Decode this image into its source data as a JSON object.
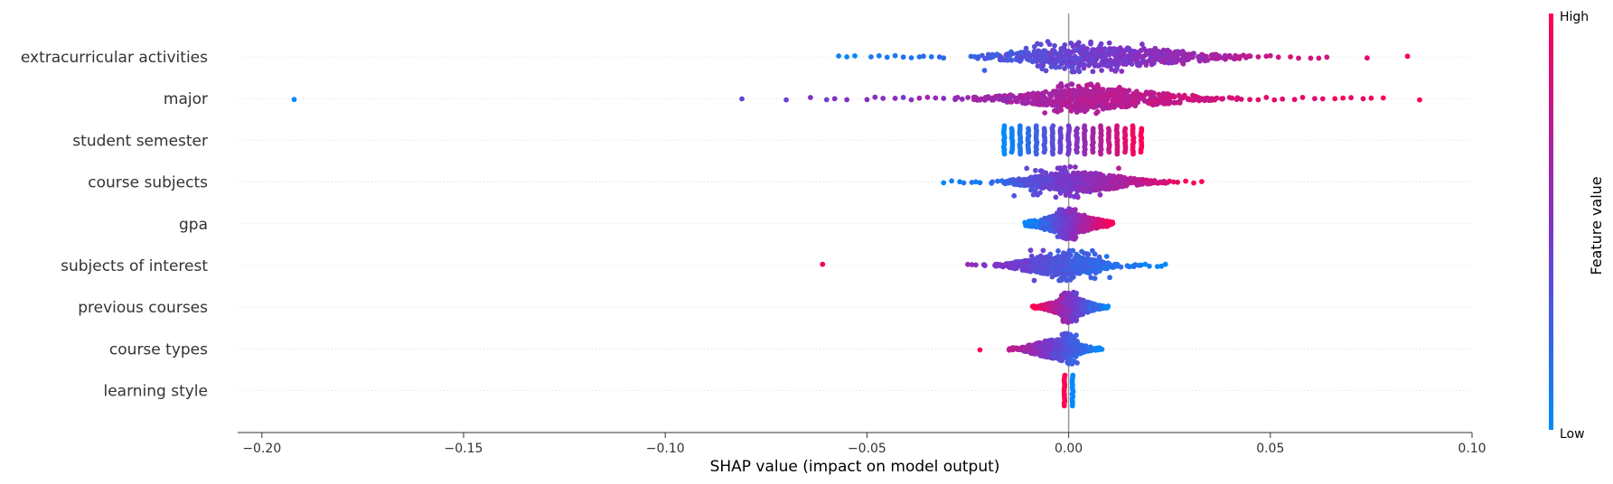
{
  "chart_data": {
    "type": "scatter",
    "subtype": "shap-beeswarm",
    "xlabel": "SHAP value (impact on model output)",
    "xlim": [
      -0.206,
      0.1
    ],
    "xticks": [
      -0.2,
      -0.15,
      -0.1,
      -0.05,
      0.0,
      0.05,
      0.1
    ],
    "xtick_labels": [
      "−0.20",
      "−0.15",
      "−0.10",
      "−0.05",
      "0.00",
      "0.05",
      "0.10"
    ],
    "zero_line": 0.0,
    "grid": "horizontal dotted row guides",
    "colorbar": {
      "title": "Feature value",
      "high_label": "High",
      "low_label": "Low",
      "low_color": "#008bfb",
      "mid_color": "#7d34c8",
      "high_color": "#ff0052"
    },
    "features": [
      {
        "name": "extracurricular activities",
        "min": -0.057,
        "max": 0.084,
        "core_min": -0.025,
        "core_max": 0.045,
        "spread": 0.018,
        "outliers_low": [
          -0.057,
          -0.055,
          -0.053,
          -0.049,
          -0.047,
          -0.045,
          -0.043,
          -0.041,
          -0.039,
          -0.037,
          -0.036,
          -0.034,
          -0.032,
          -0.031
        ],
        "outliers_high": [
          0.045,
          0.047,
          0.049,
          0.05,
          0.052,
          0.055,
          0.057,
          0.06,
          0.062,
          0.064,
          0.074,
          0.084
        ],
        "low_value_side": "left",
        "peak": 0.0,
        "bulge_spread": 0.009
      },
      {
        "name": "major",
        "min": -0.192,
        "max": 0.087,
        "core_min": -0.03,
        "core_max": 0.045,
        "spread": 0.016,
        "outliers_low": [
          -0.192,
          -0.081,
          -0.07,
          -0.064,
          -0.06,
          -0.058,
          -0.055,
          -0.05,
          -0.048,
          -0.046,
          -0.043,
          -0.041,
          -0.039,
          -0.037,
          -0.035,
          -0.033,
          -0.031
        ],
        "outliers_high": [
          0.047,
          0.049,
          0.051,
          0.053,
          0.056,
          0.058,
          0.061,
          0.063,
          0.066,
          0.068,
          0.07,
          0.073,
          0.075,
          0.078,
          0.087
        ],
        "low_value_side": "left",
        "peak": 0.003,
        "bulge_spread": 0.004
      },
      {
        "name": "student semester",
        "min": -0.016,
        "max": 0.018,
        "columns": [
          -0.016,
          -0.014,
          -0.012,
          -0.01,
          -0.008,
          -0.006,
          -0.004,
          -0.002,
          0.0,
          0.002,
          0.004,
          0.006,
          0.008,
          0.01,
          0.012,
          0.014,
          0.016,
          0.018
        ],
        "low_value_side": "left"
      },
      {
        "name": "course subjects",
        "min": -0.031,
        "max": 0.033,
        "core_min": -0.02,
        "core_max": 0.025,
        "spread": 0.01,
        "outliers_low": [
          -0.031,
          -0.029,
          -0.027,
          -0.026,
          -0.024,
          -0.023,
          -0.022
        ],
        "outliers_high": [
          0.025,
          0.026,
          0.027,
          0.029,
          0.031,
          0.033
        ],
        "low_value_side": "left",
        "peak": 0.0,
        "bulge_spread": 0.005
      },
      {
        "name": "gpa",
        "min": -0.011,
        "max": 0.011,
        "core_min": -0.011,
        "core_max": 0.011,
        "spread": 0.006,
        "outliers_low": [],
        "outliers_high": [],
        "low_value_side": "left",
        "peak": 0.0,
        "bulge_spread": 0.0015
      },
      {
        "name": "subjects of interest",
        "min": -0.061,
        "max": 0.024,
        "core_min": -0.022,
        "core_max": 0.018,
        "spread": 0.008,
        "outliers_low": [
          -0.061,
          -0.025,
          -0.024,
          -0.023
        ],
        "outliers_high": [
          0.018,
          0.019,
          0.02,
          0.022,
          0.023,
          0.024
        ],
        "low_value_side": "right",
        "peak": 0.0,
        "bulge_spread": 0.004
      },
      {
        "name": "previous courses",
        "min": -0.009,
        "max": 0.01,
        "core_min": -0.009,
        "core_max": 0.01,
        "spread": 0.004,
        "outliers_low": [],
        "outliers_high": [],
        "low_value_side": "right",
        "peak": 0.0,
        "bulge_spread": 0.001
      },
      {
        "name": "course types",
        "min": -0.022,
        "max": 0.009,
        "core_min": -0.015,
        "core_max": 0.009,
        "spread": 0.005,
        "outliers_low": [
          -0.022
        ],
        "outliers_high": [],
        "low_value_side": "right",
        "peak": 0.0,
        "bulge_spread": 0.001
      },
      {
        "name": "learning style",
        "min": -0.001,
        "max": 0.001,
        "columns": [
          -0.001,
          0.001
        ],
        "low_value_side": "right"
      }
    ]
  }
}
